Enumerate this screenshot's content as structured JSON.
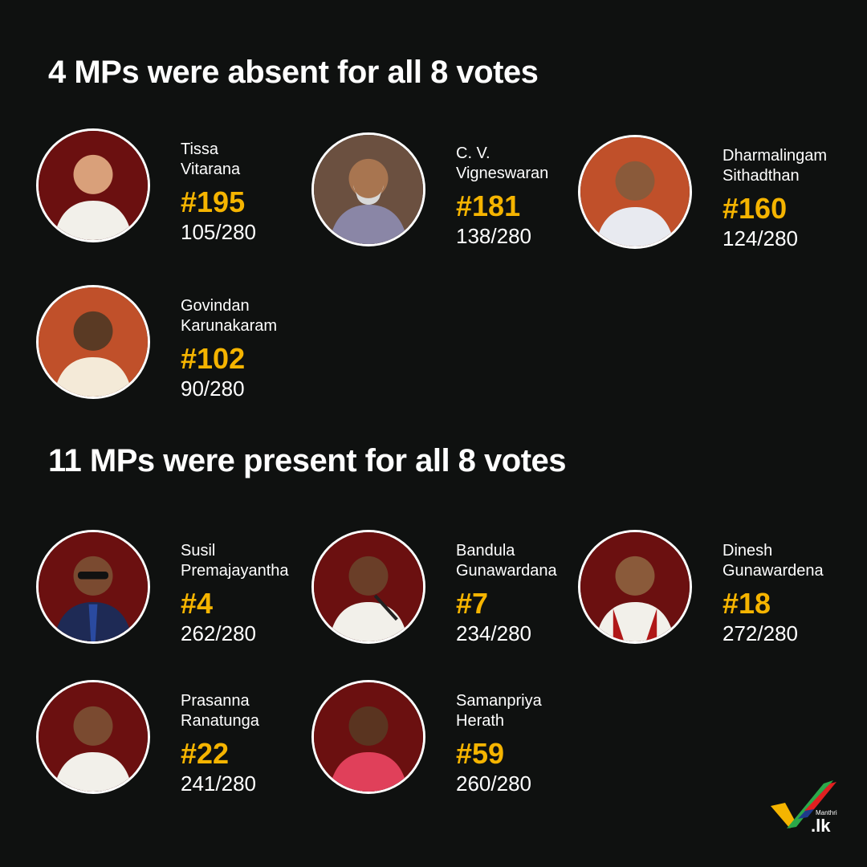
{
  "absent_heading": "4 MPs were absent for all 8 votes",
  "present_heading": "11 MPs were present for all 8 votes",
  "absent": [
    {
      "name1": "Tissa",
      "name2": "Vitarana",
      "rank": "#195",
      "score": "105/280",
      "attendance_fraction": 0.375,
      "photo_bg": "#6b1010"
    },
    {
      "name1": "C. V.",
      "name2": "Vigneswaran",
      "rank": "#181",
      "score": "138/280",
      "attendance_fraction": 0.493,
      "photo_bg": "#6b5040"
    },
    {
      "name1": "Dharmalingam",
      "name2": "Sithadthan",
      "rank": "#160",
      "score": "124/280",
      "attendance_fraction": 0.443,
      "photo_bg": "#c0502a"
    },
    {
      "name1": "Govindan",
      "name2": "Karunakaram",
      "rank": "#102",
      "score": "90/280",
      "attendance_fraction": 0.321,
      "photo_bg": "#c0502a"
    }
  ],
  "present": [
    {
      "name1": "Susil",
      "name2": "Premajayantha",
      "rank": "#4",
      "score": "262/280",
      "attendance_fraction": 0.936,
      "photo_bg": "#6b1010"
    },
    {
      "name1": "Bandula",
      "name2": "Gunawardana",
      "rank": "#7",
      "score": "234/280",
      "attendance_fraction": 0.836,
      "photo_bg": "#6b1010"
    },
    {
      "name1": "Dinesh",
      "name2": "Gunawardena",
      "rank": "#18",
      "score": "272/280",
      "attendance_fraction": 0.971,
      "photo_bg": "#6b1010"
    },
    {
      "name1": "Prasanna",
      "name2": "Ranatunga",
      "rank": "#22",
      "score": "241/280",
      "attendance_fraction": 0.861,
      "photo_bg": "#6b1010"
    },
    {
      "name1": "Samanpriya",
      "name2": "Herath",
      "rank": "#59",
      "score": "260/280",
      "attendance_fraction": 0.929,
      "photo_bg": "#6b1010"
    }
  ],
  "logo": {
    "small": "Manthri",
    "big": ".lk"
  },
  "colors": {
    "background": "#0f1110",
    "rank": "#f5b400",
    "text": "#ffffff"
  }
}
